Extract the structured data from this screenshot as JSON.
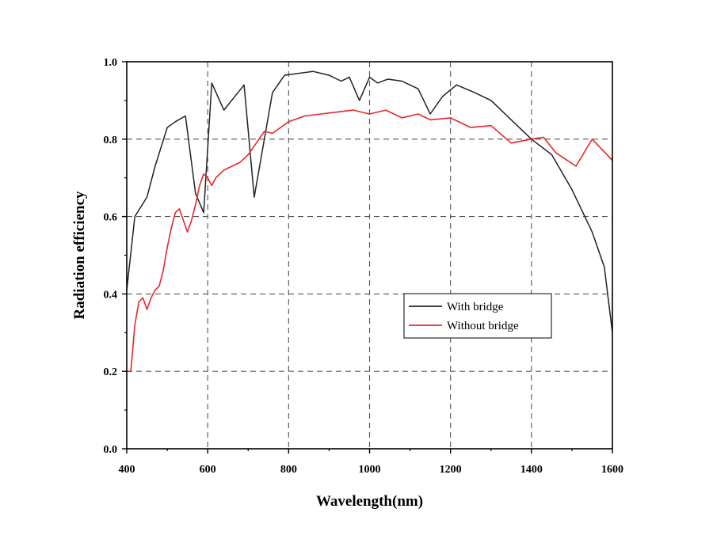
{
  "chart_data": {
    "type": "line",
    "title": "",
    "xlabel": "Wavelength(nm)",
    "ylabel": "Radiation efficiency",
    "xlim": [
      400,
      1600
    ],
    "ylim": [
      0.0,
      1.0
    ],
    "xticks": [
      400,
      600,
      800,
      1000,
      1200,
      1400,
      1600
    ],
    "xtick_labels": [
      "400",
      "600",
      "800",
      "1000",
      "1200",
      "1400",
      "1600"
    ],
    "yticks": [
      0.0,
      0.2,
      0.4,
      0.6,
      0.8,
      1.0
    ],
    "ytick_labels": [
      "0.0",
      "0.2",
      "0.4",
      "0.6",
      "0.8",
      "1.0"
    ],
    "grid": "dashed",
    "legend_position": "center-right",
    "series": [
      {
        "name": "With bridge",
        "color": "#222222",
        "x": [
          400,
          420,
          450,
          470,
          500,
          520,
          545,
          570,
          590,
          610,
          640,
          690,
          715,
          760,
          790,
          860,
          900,
          930,
          950,
          975,
          1000,
          1020,
          1045,
          1080,
          1120,
          1150,
          1180,
          1215,
          1260,
          1300,
          1350,
          1400,
          1450,
          1500,
          1550,
          1580,
          1600
        ],
        "y": [
          0.41,
          0.6,
          0.65,
          0.73,
          0.83,
          0.845,
          0.86,
          0.66,
          0.61,
          0.945,
          0.875,
          0.94,
          0.65,
          0.92,
          0.965,
          0.975,
          0.965,
          0.95,
          0.96,
          0.9,
          0.96,
          0.945,
          0.955,
          0.95,
          0.93,
          0.865,
          0.91,
          0.94,
          0.92,
          0.9,
          0.85,
          0.8,
          0.76,
          0.67,
          0.56,
          0.47,
          0.3
        ]
      },
      {
        "name": "Without bridge",
        "color": "#e8262a",
        "x": [
          400,
          410,
          420,
          430,
          440,
          450,
          460,
          470,
          480,
          490,
          500,
          510,
          520,
          530,
          540,
          550,
          560,
          570,
          580,
          590,
          600,
          610,
          620,
          640,
          660,
          680,
          700,
          720,
          740,
          760,
          800,
          840,
          880,
          920,
          960,
          980,
          1000,
          1040,
          1080,
          1120,
          1150,
          1200,
          1250,
          1300,
          1350,
          1400,
          1430,
          1460,
          1510,
          1550,
          1600
        ],
        "y": [
          0.2,
          0.2,
          0.32,
          0.38,
          0.39,
          0.36,
          0.39,
          0.41,
          0.42,
          0.46,
          0.52,
          0.57,
          0.61,
          0.62,
          0.59,
          0.56,
          0.59,
          0.63,
          0.68,
          0.71,
          0.7,
          0.68,
          0.7,
          0.72,
          0.73,
          0.74,
          0.76,
          0.79,
          0.82,
          0.815,
          0.845,
          0.86,
          0.865,
          0.87,
          0.875,
          0.87,
          0.865,
          0.875,
          0.855,
          0.865,
          0.85,
          0.855,
          0.83,
          0.835,
          0.79,
          0.8,
          0.805,
          0.765,
          0.73,
          0.8,
          0.745
        ]
      }
    ]
  }
}
